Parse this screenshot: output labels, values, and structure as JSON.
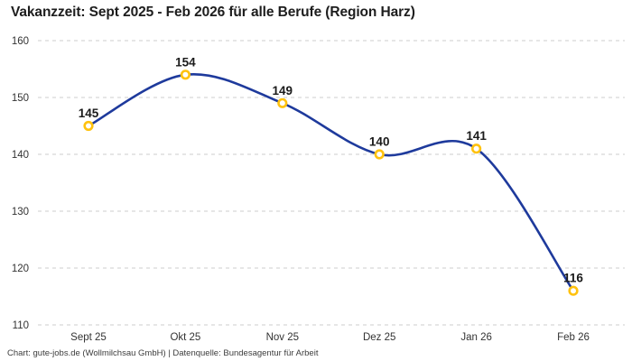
{
  "chart_data": {
    "type": "line",
    "title": "Vakanzzeit: Sept 2025 - Feb 2026 für alle Berufe (Region Harz)",
    "categories": [
      "Sept 25",
      "Okt 25",
      "Nov 25",
      "Dez 25",
      "Jan 26",
      "Feb 26"
    ],
    "series": [
      {
        "name": "Vakanzzeit",
        "values": [
          145,
          154,
          149,
          140,
          141,
          116
        ]
      }
    ],
    "xlabel": "",
    "ylabel": "",
    "ylim": [
      110,
      160
    ],
    "yticks": [
      110,
      120,
      130,
      140,
      150,
      160
    ],
    "grid": "horizontal-dashed",
    "legend_position": "none",
    "marker_style": "open-circle",
    "line_style": "smooth-spline",
    "colors": {
      "line": "#1e3a9c",
      "marker_ring": "#ffc20e",
      "marker_fill": "#ffffff",
      "gridline": "#cccccc",
      "value_label": "#1a1a1a",
      "tick_label": "#333333",
      "title": "#1d1d1d"
    }
  },
  "footer": {
    "text": "Chart: gute-jobs.de (Wollmilchsau GmbH) | Datenquelle: Bundesagentur für Arbeit"
  }
}
